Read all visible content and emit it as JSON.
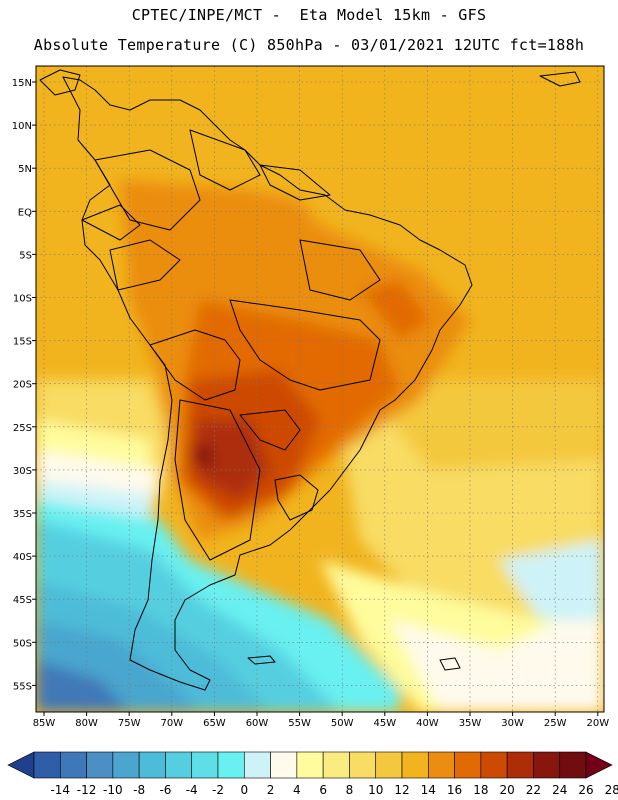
{
  "header": {
    "line1": "CPTEC/INPE/MCT -  Eta Model 15km - GFS",
    "line2": "Absolute Temperature (C) 850hPa - 03/01/2021 12UTC fct=188h"
  },
  "map": {
    "region": "South America",
    "lat_labels": [
      "15N",
      "10N",
      "5N",
      "EQ",
      "5S",
      "10S",
      "15S",
      "20S",
      "25S",
      "30S",
      "35S",
      "40S",
      "45S",
      "50S",
      "55S"
    ],
    "lon_labels": [
      "85W",
      "80W",
      "75W",
      "70W",
      "65W",
      "60W",
      "55W",
      "50W",
      "45W",
      "40W",
      "35W",
      "30W",
      "25W",
      "20W"
    ]
  },
  "colorbar": {
    "labels": [
      "-14",
      "-12",
      "-10",
      "-8",
      "-6",
      "-4",
      "-2",
      "0",
      "2",
      "4",
      "6",
      "8",
      "10",
      "12",
      "14",
      "16",
      "18",
      "20",
      "22",
      "24",
      "26",
      "28"
    ],
    "colors": [
      "#1f3f8f",
      "#2f5ea8",
      "#3f78b8",
      "#4b8fc4",
      "#4aa6cf",
      "#4dbcd8",
      "#55cfe0",
      "#5edfe8",
      "#69f0f0",
      "#cdf3f8",
      "#fffaec",
      "#fefc9c",
      "#fbec82",
      "#f8dc63",
      "#f4c83e",
      "#f1b41e",
      "#eb8d10",
      "#e26a05",
      "#cd4a05",
      "#ad2d08",
      "#87160d",
      "#6f0d10",
      "#720016"
    ]
  },
  "colors": {
    "land_border": "#000000",
    "frame": "#000000"
  },
  "icons": [
    "lat-lon-grid",
    "coastline",
    "country-borders"
  ]
}
